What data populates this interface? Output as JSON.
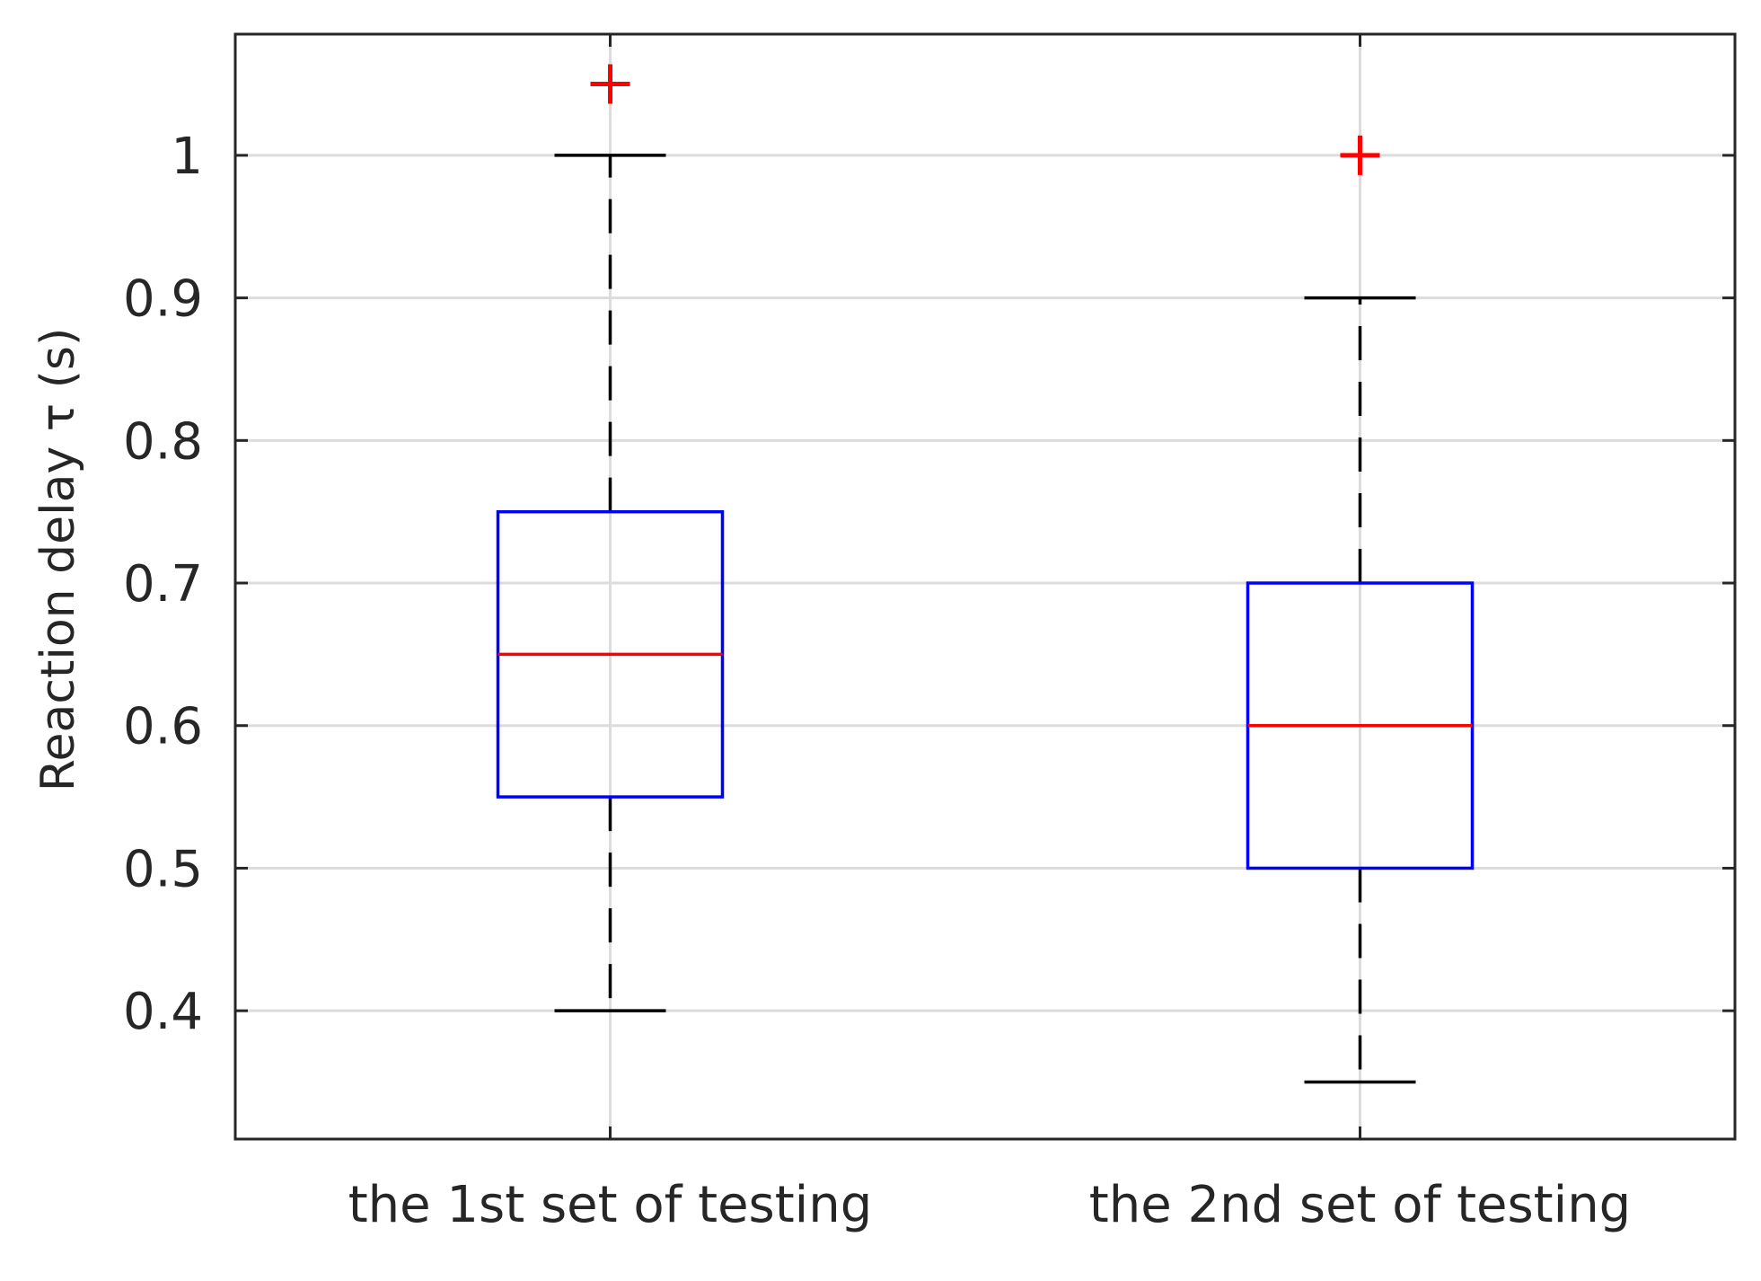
{
  "chart_data": {
    "type": "box",
    "title": "",
    "xlabel": "",
    "ylabel": "Reaction delay τ (s)",
    "ylim": [
      0.31,
      1.085
    ],
    "yticks": [
      0.4,
      0.5,
      0.6,
      0.7,
      0.8,
      0.9,
      1
    ],
    "ytick_labels": [
      "0.4",
      "0.5",
      "0.6",
      "0.7",
      "0.8",
      "0.9",
      "1"
    ],
    "grid": true,
    "categories": [
      "the 1st set of testing",
      "the 2nd set of testing"
    ],
    "boxes": [
      {
        "category": "the 1st set of testing",
        "whisker_low": 0.4,
        "q1": 0.55,
        "median": 0.65,
        "q3": 0.75,
        "whisker_high": 1.0,
        "outliers": [
          1.05
        ]
      },
      {
        "category": "the 2nd set of testing",
        "whisker_low": 0.35,
        "q1": 0.5,
        "median": 0.6,
        "q3": 0.7,
        "whisker_high": 0.9,
        "outliers": [
          1.0
        ]
      }
    ],
    "colors": {
      "box": "#0000ff",
      "median": "#ff0000",
      "outlier": "#ff0000",
      "whisker": "#000000",
      "grid": "#dcdcdc",
      "axis": "#262626"
    }
  }
}
